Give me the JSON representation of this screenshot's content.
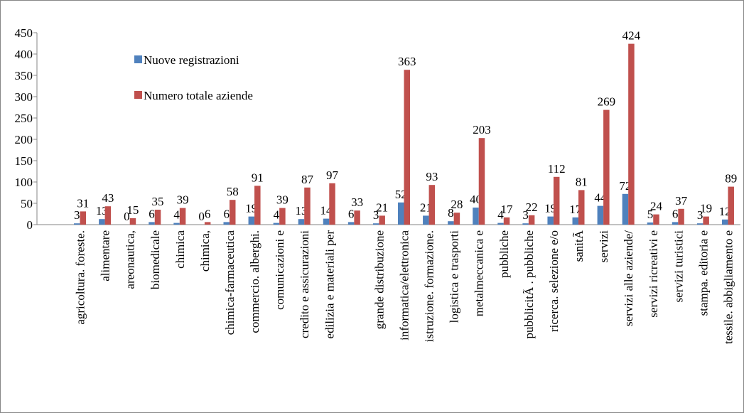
{
  "chart_data": {
    "type": "bar",
    "categories": [
      "agricoltura. foreste.",
      "alimentare",
      "areonautica,",
      "biomedicale",
      "chimica",
      "chimica,",
      "chimica-farmaceutica",
      "commercio. alberghi.",
      "comunicazioni e",
      "credito e assicurazioni",
      "edilizia e materiali per",
      null,
      "grande distribuzione",
      "informatica/elettronica",
      "istruzione. formazione.",
      "logistica e trasporti",
      "metalmeccanica e",
      "pubbliche",
      "pubblicitÃ . pubbliche",
      "ricerca. selezione e/o",
      "sanitÃ",
      "servizi",
      "servizi alle aziende/",
      "servizi ricreativi e",
      "servizi turistici",
      "stampa. editoria e",
      "tessile. abbigliamento e"
    ],
    "series": [
      {
        "name": "Nuove registrazioni",
        "color": "#4f81bd",
        "values": [
          3,
          13,
          0,
          6,
          4,
          0,
          6,
          19,
          4,
          13,
          14,
          6,
          3,
          52,
          21,
          8,
          40,
          4,
          3,
          19,
          17,
          44,
          72,
          5,
          6,
          3,
          12
        ]
      },
      {
        "name": "Numero totale aziende",
        "color": "#c0504d",
        "values": [
          31,
          43,
          15,
          35,
          39,
          6,
          58,
          91,
          39,
          87,
          97,
          33,
          21,
          363,
          93,
          28,
          203,
          17,
          22,
          112,
          81,
          269,
          424,
          24,
          37,
          19,
          89
        ]
      }
    ],
    "ylim": [
      0,
      450
    ],
    "yticks": [
      0,
      50,
      100,
      150,
      200,
      250,
      300,
      350,
      400,
      450
    ],
    "grid": false,
    "data_labels": true
  }
}
